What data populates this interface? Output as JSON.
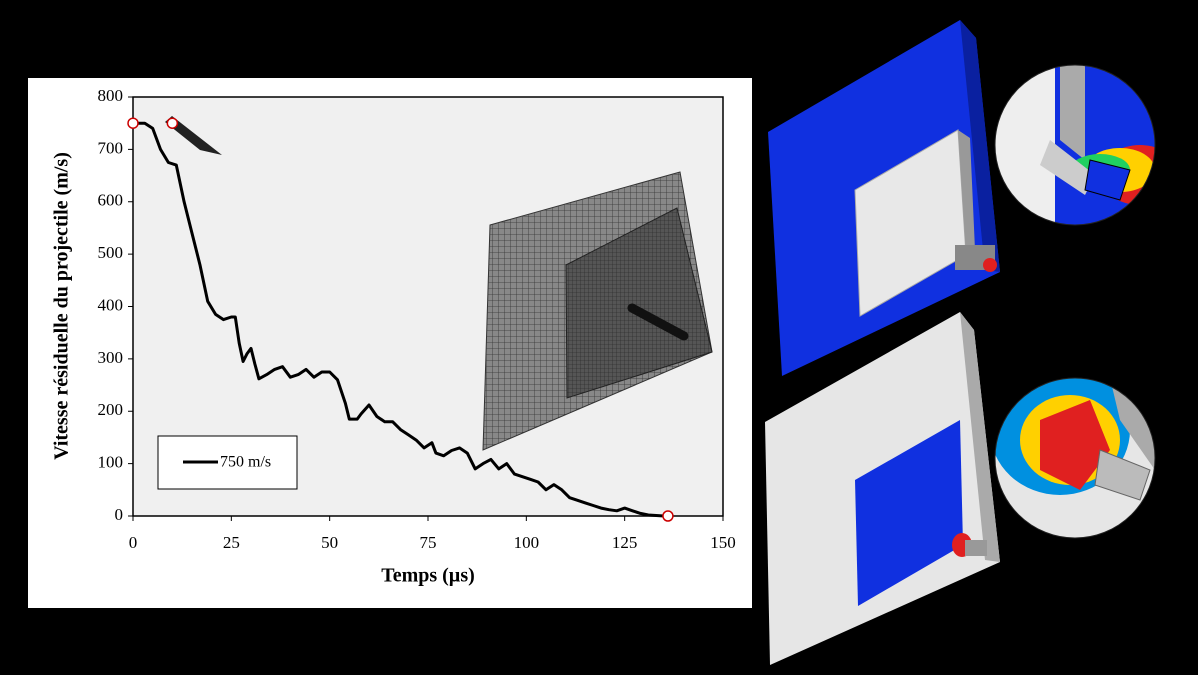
{
  "chart_data": {
    "type": "line",
    "xlabel": "Temps (µs)",
    "ylabel": "Vitesse résiduelle du projectile (m/s)",
    "x": [
      0,
      3,
      5,
      7,
      9,
      11,
      13,
      15,
      17,
      19,
      21,
      23,
      25,
      26,
      27,
      28,
      29,
      30,
      31,
      32,
      34,
      36,
      38,
      40,
      42,
      44,
      46,
      48,
      50,
      52,
      54,
      55,
      57,
      58,
      60,
      62,
      64,
      66,
      68,
      70,
      72,
      74,
      76,
      77,
      79,
      81,
      83,
      85,
      87,
      89,
      91,
      93,
      95,
      97,
      99,
      101,
      103,
      105,
      107,
      109,
      111,
      113,
      115,
      117,
      119,
      121,
      123,
      125,
      127,
      129,
      131,
      135
    ],
    "series": [
      {
        "name": "750 m/s",
        "color": "#000000",
        "values": [
          750,
          750,
          740,
          700,
          675,
          670,
          600,
          540,
          480,
          410,
          385,
          375,
          380,
          380,
          330,
          295,
          310,
          320,
          290,
          262,
          270,
          280,
          285,
          265,
          270,
          280,
          265,
          275,
          275,
          260,
          215,
          185,
          185,
          195,
          212,
          190,
          180,
          180,
          165,
          155,
          145,
          130,
          140,
          120,
          115,
          125,
          130,
          120,
          90,
          100,
          108,
          90,
          100,
          80,
          75,
          70,
          65,
          50,
          60,
          50,
          35,
          30,
          25,
          20,
          15,
          12,
          10,
          15,
          10,
          5,
          2,
          0
        ]
      }
    ],
    "markers": {
      "color": "#cc0000",
      "x": [
        0,
        10,
        136
      ],
      "y": [
        750,
        750,
        0
      ]
    },
    "xlim": [
      0,
      150
    ],
    "xticks": [
      0,
      25,
      50,
      75,
      100,
      125,
      150
    ],
    "ylim": [
      0,
      800
    ],
    "yticks": [
      0,
      100,
      200,
      300,
      400,
      500,
      600,
      700,
      800
    ],
    "legend": "lower left"
  }
}
